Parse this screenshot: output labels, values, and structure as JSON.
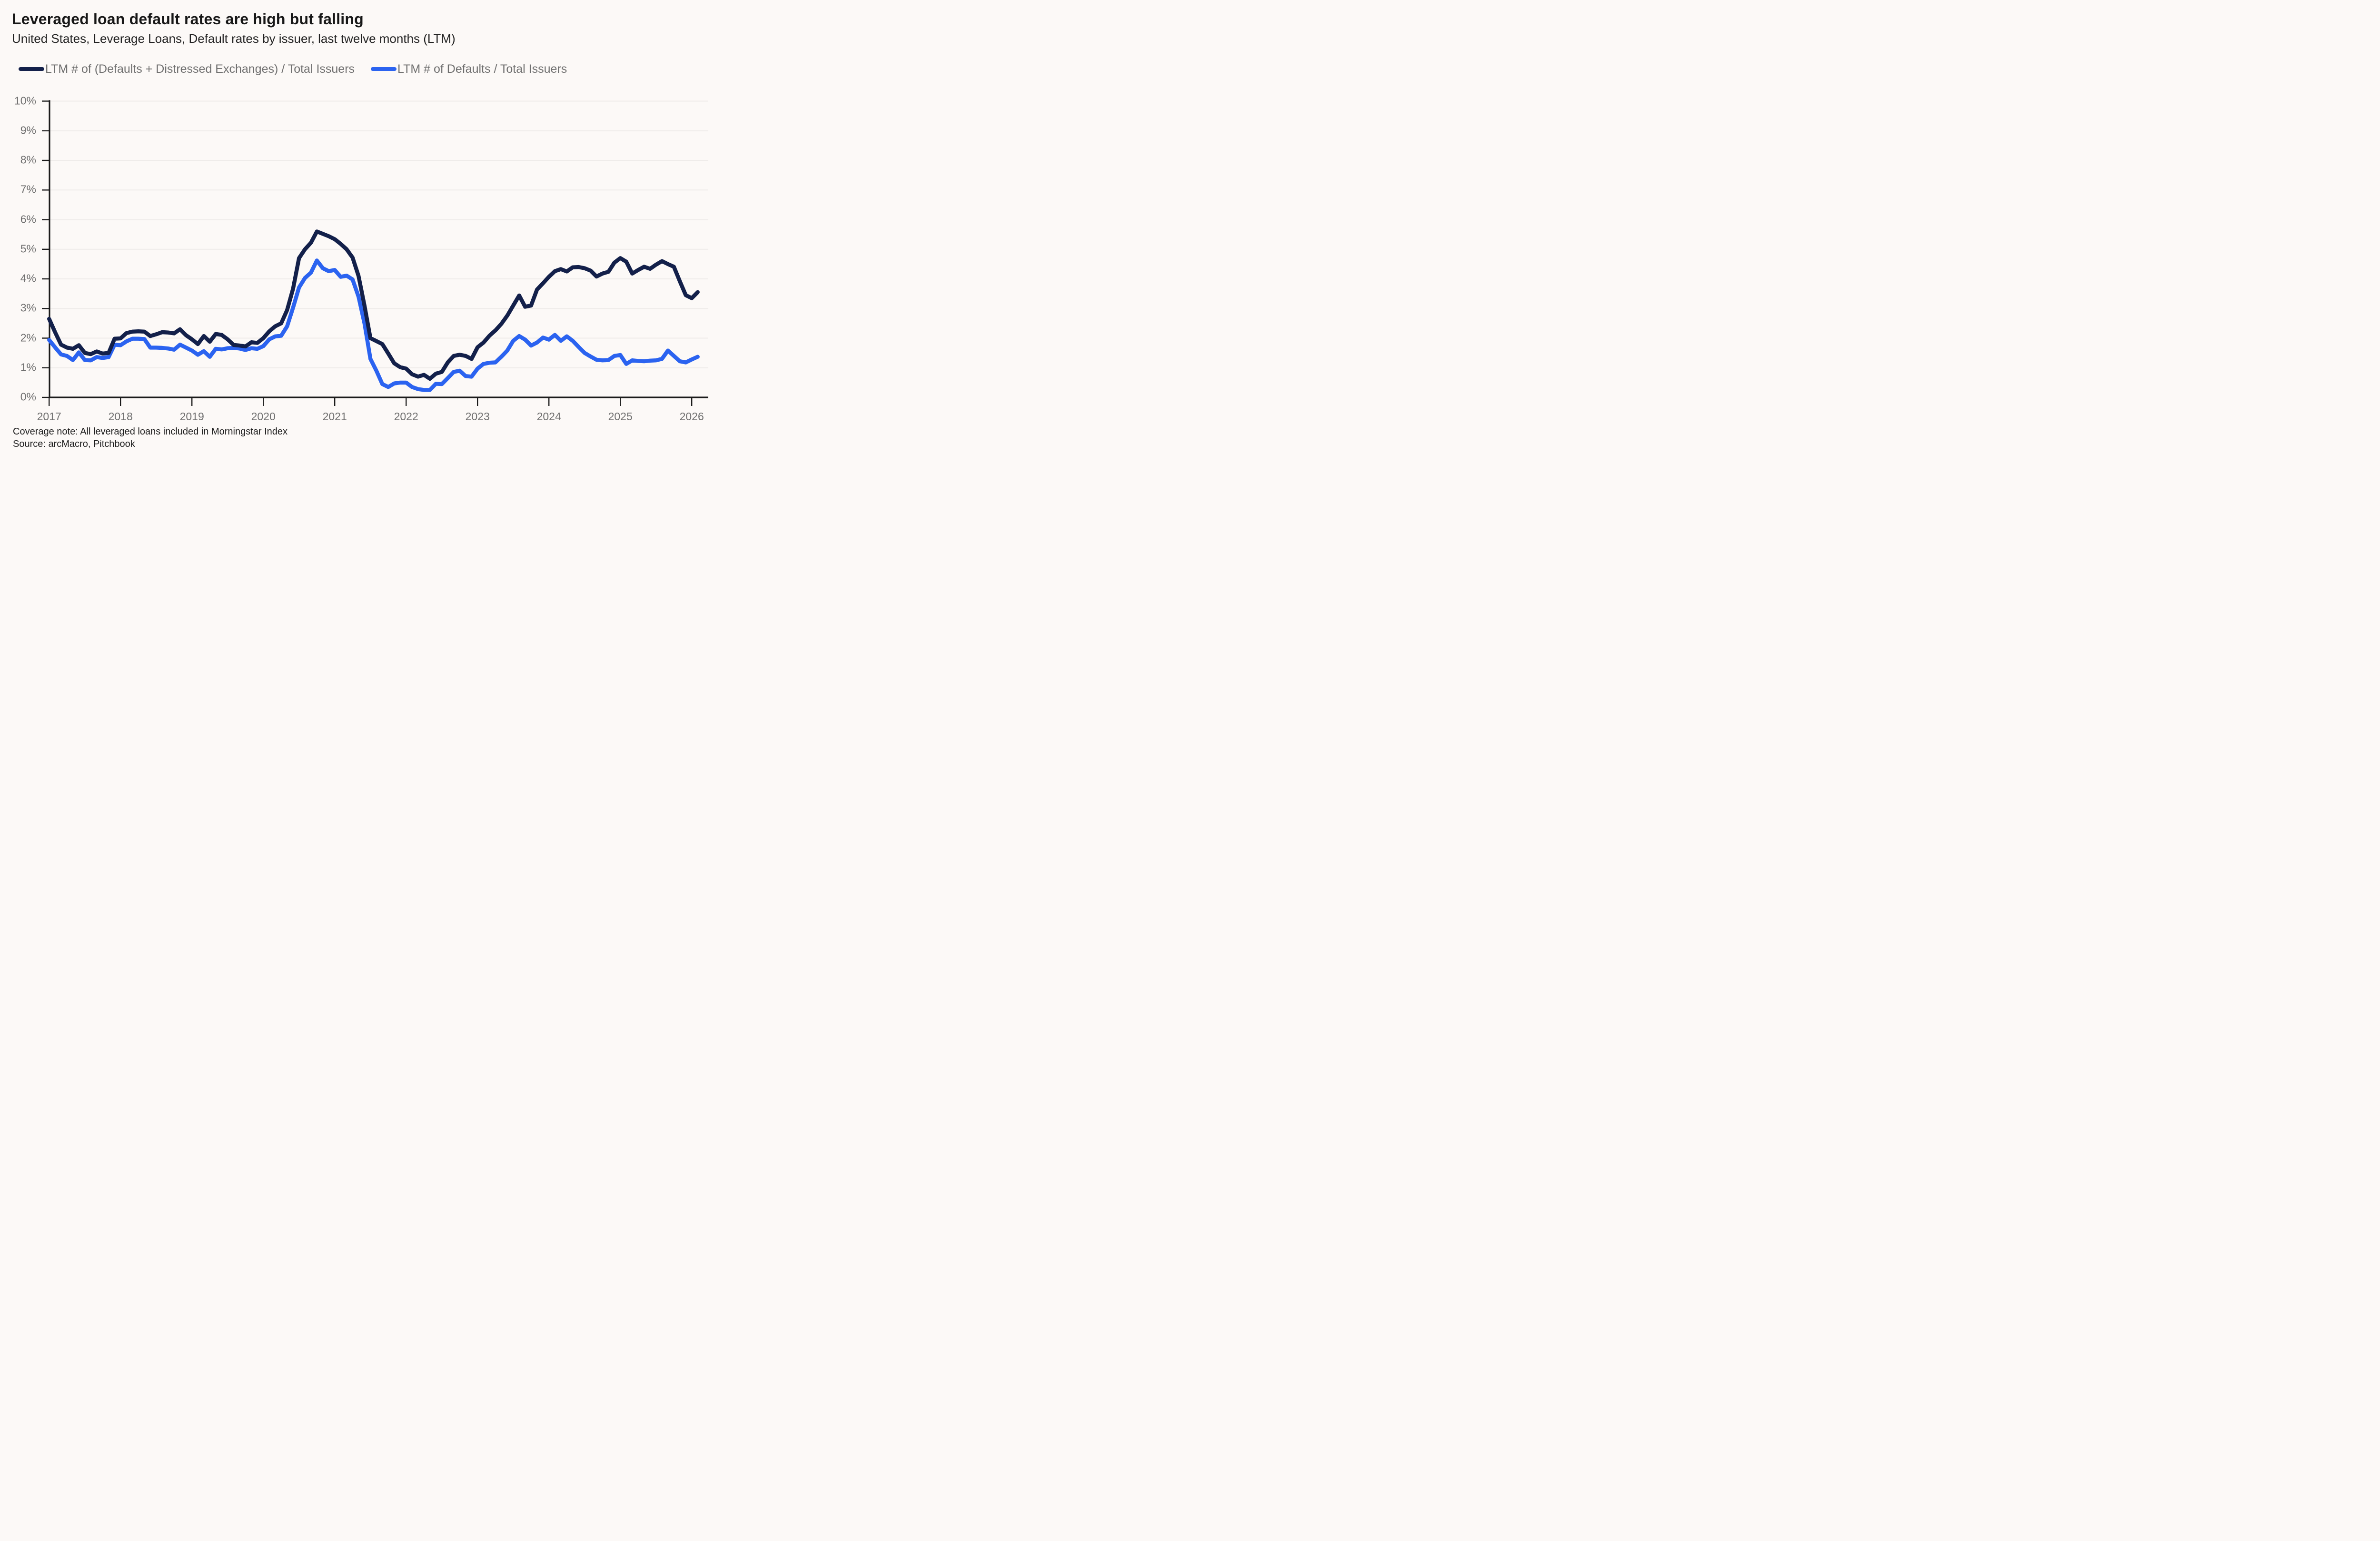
{
  "title": "Leveraged loan default rates are high but falling",
  "subtitle": "United States, Leverage Loans, Default rates by issuer, last twelve months (LTM)",
  "legend": [
    {
      "label": "LTM # of (Defaults + Distressed Exchanges) / Total Issuers",
      "color": "#13204a"
    },
    {
      "label": "LTM # of Defaults / Total Issuers",
      "color": "#2b63f0"
    }
  ],
  "footer": {
    "coverage_note": "Coverage note: All leveraged loans included in Morningstar Index",
    "source": "Source: arcMacro, Pitchbook"
  },
  "chart_data": {
    "type": "line",
    "x_frequency": "monthly",
    "x_start": "2017-01",
    "x_end": "2026-02",
    "x_tick_labels": [
      "2017",
      "2018",
      "2019",
      "2020",
      "2021",
      "2022",
      "2023",
      "2024",
      "2025",
      "2026"
    ],
    "y_tick_labels": [
      "0%",
      "1%",
      "2%",
      "3%",
      "4%",
      "5%",
      "6%",
      "7%",
      "8%",
      "9%",
      "10%"
    ],
    "ylim": [
      0,
      10
    ],
    "y_unit": "percent",
    "grid": "horizontal",
    "legend_position": "top",
    "series": [
      {
        "name": "LTM # of (Defaults + Distressed Exchanges) / Total Issuers",
        "color": "#13204a",
        "values": [
          2.65,
          2.2,
          1.78,
          1.68,
          1.64,
          1.76,
          1.5,
          1.46,
          1.55,
          1.48,
          1.5,
          1.98,
          1.99,
          2.17,
          2.22,
          2.23,
          2.22,
          2.07,
          2.13,
          2.2,
          2.19,
          2.16,
          2.3,
          2.1,
          1.96,
          1.8,
          2.07,
          1.88,
          2.14,
          2.11,
          1.96,
          1.77,
          1.75,
          1.72,
          1.86,
          1.84,
          2.0,
          2.23,
          2.4,
          2.5,
          2.95,
          3.67,
          4.7,
          5.0,
          5.22,
          5.6,
          5.52,
          5.44,
          5.34,
          5.18,
          5.0,
          4.72,
          4.1,
          3.1,
          2.0,
          1.9,
          1.8,
          1.48,
          1.15,
          1.02,
          0.97,
          0.78,
          0.7,
          0.76,
          0.63,
          0.8,
          0.86,
          1.18,
          1.4,
          1.44,
          1.4,
          1.3,
          1.69,
          1.85,
          2.08,
          2.26,
          2.48,
          2.76,
          3.1,
          3.44,
          3.06,
          3.1,
          3.64,
          3.85,
          4.07,
          4.26,
          4.33,
          4.25,
          4.39,
          4.4,
          4.36,
          4.28,
          4.08,
          4.18,
          4.24,
          4.55,
          4.7,
          4.58,
          4.18,
          4.3,
          4.41,
          4.34,
          4.48,
          4.6,
          4.5,
          4.41,
          3.92,
          3.45,
          3.35,
          3.55
        ]
      },
      {
        "name": "LTM # of Defaults / Total Issuers",
        "color": "#2b63f0",
        "values": [
          1.94,
          1.69,
          1.45,
          1.4,
          1.26,
          1.52,
          1.26,
          1.25,
          1.36,
          1.33,
          1.36,
          1.78,
          1.76,
          1.89,
          1.98,
          1.98,
          1.97,
          1.68,
          1.68,
          1.67,
          1.65,
          1.61,
          1.78,
          1.68,
          1.58,
          1.44,
          1.56,
          1.37,
          1.64,
          1.62,
          1.66,
          1.67,
          1.65,
          1.6,
          1.66,
          1.64,
          1.73,
          1.96,
          2.06,
          2.08,
          2.4,
          3.03,
          3.71,
          4.03,
          4.21,
          4.62,
          4.36,
          4.26,
          4.3,
          4.07,
          4.11,
          3.98,
          3.4,
          2.5,
          1.3,
          0.9,
          0.45,
          0.35,
          0.47,
          0.5,
          0.5,
          0.35,
          0.28,
          0.25,
          0.25,
          0.46,
          0.45,
          0.65,
          0.86,
          0.9,
          0.72,
          0.7,
          0.97,
          1.13,
          1.17,
          1.18,
          1.37,
          1.58,
          1.91,
          2.07,
          1.95,
          1.75,
          1.85,
          2.02,
          1.95,
          2.11,
          1.91,
          2.06,
          1.91,
          1.7,
          1.5,
          1.38,
          1.27,
          1.25,
          1.26,
          1.4,
          1.43,
          1.13,
          1.25,
          1.23,
          1.22,
          1.24,
          1.25,
          1.3,
          1.58,
          1.4,
          1.22,
          1.18,
          1.28,
          1.37
        ]
      }
    ]
  },
  "colors": {
    "background": "#fcf9f7",
    "gridline": "#efecea",
    "axis": "#1b1b1b",
    "title_text": "#171717",
    "subtitle_text": "#222222",
    "legend_text": "#6f6f6f",
    "tick_label_text": "#6f6f6f",
    "footer_text": "#1c1c1c"
  }
}
